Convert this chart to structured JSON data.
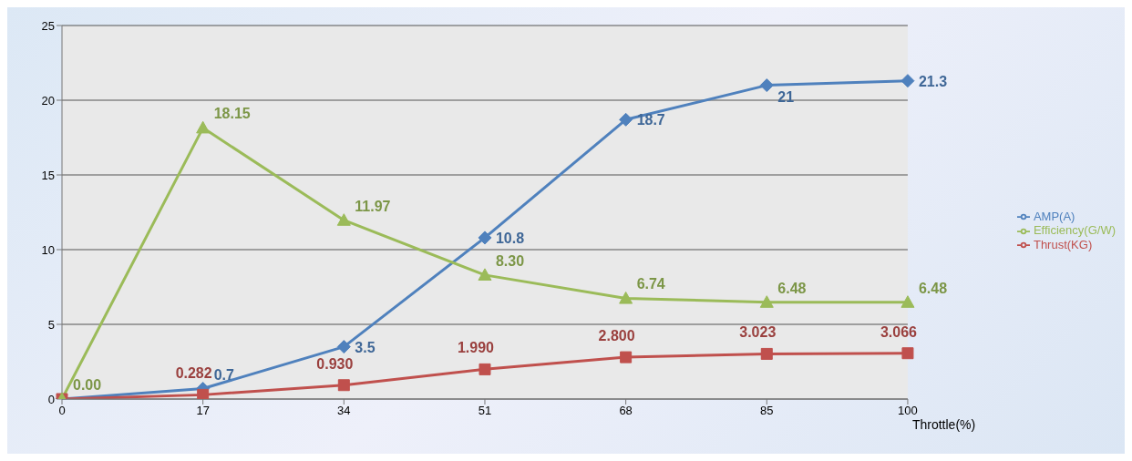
{
  "chart_data": {
    "type": "line",
    "xlabel": "Throttle(%)",
    "categories": [
      "0",
      "17",
      "34",
      "51",
      "68",
      "85",
      "100"
    ],
    "ylim": [
      0,
      25
    ],
    "yticks": [
      0,
      5,
      10,
      15,
      20,
      25
    ],
    "grid": "y",
    "legend": "right",
    "series": [
      {
        "name": "AMP(A)",
        "color": "#4f81bd",
        "marker": "diamond",
        "values": [
          0,
          0.7,
          3.5,
          10.8,
          18.7,
          21,
          21.3
        ],
        "value_labels": [
          null,
          "0.7",
          "3.5",
          "10.8",
          "18.7",
          "21",
          "21.3"
        ]
      },
      {
        "name": "Thrust(KG)",
        "color": "#c0504d",
        "marker": "square",
        "values": [
          0,
          0.282,
          0.93,
          1.99,
          2.8,
          3.023,
          3.066
        ],
        "value_labels": [
          null,
          "0.282",
          "0.930",
          "1.990",
          "2.800",
          "3.023",
          "3.066"
        ]
      },
      {
        "name": "Efficiency(G/W)",
        "color": "#9bbb59",
        "marker": "triangle",
        "values": [
          0,
          18.15,
          11.97,
          8.3,
          6.74,
          6.48,
          6.48
        ],
        "value_labels": [
          "0.00",
          "18.15",
          "11.97",
          "8.30",
          "6.74",
          "6.48",
          "6.48"
        ]
      }
    ]
  }
}
